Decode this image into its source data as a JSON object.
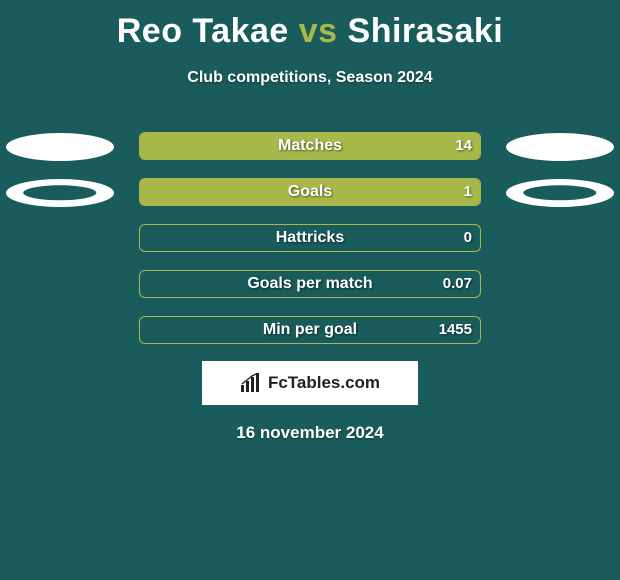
{
  "title": {
    "player1": "Reo Takae",
    "vs": "vs",
    "player2": "Shirasaki"
  },
  "subtitle": "Club competitions, Season 2024",
  "colors": {
    "background": "#1a5c5c",
    "accent": "#a8b84a",
    "text": "#ffffff",
    "ellipse": "#ffffff"
  },
  "chart": {
    "track_width": 342,
    "rows": [
      {
        "label": "Matches",
        "left_value": "",
        "right_value": "14",
        "left_fill_pct": 0,
        "right_fill_pct": 100,
        "show_left_ellipse": true,
        "show_right_ellipse": true,
        "ellipse_hollow": false
      },
      {
        "label": "Goals",
        "left_value": "",
        "right_value": "1",
        "left_fill_pct": 0,
        "right_fill_pct": 100,
        "show_left_ellipse": true,
        "show_right_ellipse": true,
        "ellipse_hollow": true
      },
      {
        "label": "Hattricks",
        "left_value": "",
        "right_value": "0",
        "left_fill_pct": 0,
        "right_fill_pct": 0,
        "show_left_ellipse": false,
        "show_right_ellipse": false,
        "ellipse_hollow": false
      },
      {
        "label": "Goals per match",
        "left_value": "",
        "right_value": "0.07",
        "left_fill_pct": 0,
        "right_fill_pct": 0,
        "show_left_ellipse": false,
        "show_right_ellipse": false,
        "ellipse_hollow": false
      },
      {
        "label": "Min per goal",
        "left_value": "",
        "right_value": "1455",
        "left_fill_pct": 0,
        "right_fill_pct": 0,
        "show_left_ellipse": false,
        "show_right_ellipse": false,
        "ellipse_hollow": false
      }
    ]
  },
  "brand": "FcTables.com",
  "date": "16 november 2024"
}
